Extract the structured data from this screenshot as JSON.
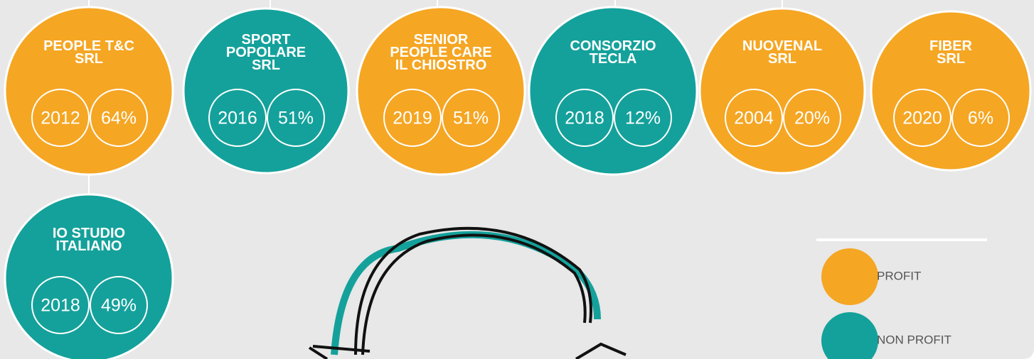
{
  "companies": [
    {
      "name": [
        "PEOPLE T&C",
        "SRL"
      ],
      "year": "2012",
      "share": "64%",
      "color": "#f5a623"
    },
    {
      "name": [
        "SPORT",
        "POPOLARE",
        "SRL"
      ],
      "year": "2016",
      "share": "51%",
      "color": "#14a19b"
    },
    {
      "name": [
        "SENIOR",
        "PEOPLE CARE",
        "IL CHIOSTRO"
      ],
      "year": "2019",
      "share": "51%",
      "color": "#f5a623"
    },
    {
      "name": [
        "CONSORZIO",
        "TECLA"
      ],
      "year": "2018",
      "share": "12%",
      "color": "#14a19b"
    },
    {
      "name": [
        "NUOVENAL",
        "SRL"
      ],
      "year": "2004",
      "share": "20%",
      "color": "#f5a623"
    },
    {
      "name": [
        "FIBER",
        "SRL"
      ],
      "year": "2020",
      "share": "6%",
      "color": "#f5a623"
    },
    {
      "name": [
        "IO STUDIO",
        "ITALIANO"
      ],
      "year": "2018",
      "share": "49%",
      "color": "#14a19b"
    }
  ],
  "legend": [
    {
      "label": "PROFIT",
      "color": "#f5a623"
    },
    {
      "label": "NON PROFIT",
      "color": "#14a19b"
    }
  ]
}
